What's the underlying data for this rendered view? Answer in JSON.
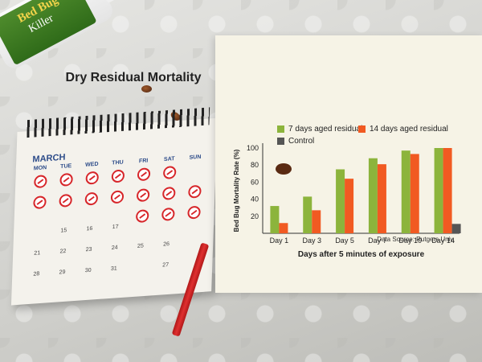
{
  "colors": {
    "series_7day": "#8cb43c",
    "series_14day": "#f15a22",
    "series_control": "#555555",
    "panel_bg": "#f6f3e6"
  },
  "bottle": {
    "brand_line1": "Bed Bug",
    "brand_line2": "Killer"
  },
  "calendar": {
    "month": "MARCH",
    "days_of_week": [
      "MON",
      "TUE",
      "WED",
      "THU",
      "FRI",
      "SAT",
      "SUN"
    ],
    "rows": [
      [
        "",
        "",
        "",
        "",
        "",
        "",
        ""
      ],
      [
        "",
        "",
        "",
        "",
        "",
        "",
        ""
      ],
      [
        "",
        "15",
        "16",
        "17",
        "",
        "",
        ""
      ],
      [
        "21",
        "22",
        "23",
        "24",
        "25",
        "26",
        ""
      ],
      [
        "28",
        "29",
        "30",
        "31",
        "",
        "27",
        ""
      ]
    ],
    "marked_row1": [
      1,
      1,
      1,
      1,
      1,
      1,
      0
    ],
    "marked_row2": [
      1,
      1,
      1,
      1,
      1,
      1,
      1
    ],
    "marked_row3": [
      0,
      0,
      0,
      0,
      1,
      1,
      1
    ]
  },
  "chart_data": {
    "type": "bar",
    "title": "Dry Residual Mortality",
    "xlabel": "Days after 5 minutes of exposure",
    "ylabel": "Bed Bug Mortality Rate (%)",
    "ylim": [
      0,
      100
    ],
    "yticks": [
      20,
      40,
      60,
      80,
      100
    ],
    "categories": [
      "Day 1",
      "Day 3",
      "Day 5",
      "Day 7",
      "Day 10",
      "Day 14"
    ],
    "series": [
      {
        "name": "7 days aged residual",
        "values": [
          32,
          43,
          75,
          88,
          97,
          100
        ]
      },
      {
        "name": "14 days aged residual",
        "values": [
          12,
          27,
          64,
          81,
          93,
          100
        ]
      },
      {
        "name": "Control",
        "values": [
          0,
          0,
          0,
          0,
          0,
          11
        ]
      }
    ],
    "legend_position": "top",
    "grid": false,
    "source": "Data Source: Rutgers Univ."
  }
}
